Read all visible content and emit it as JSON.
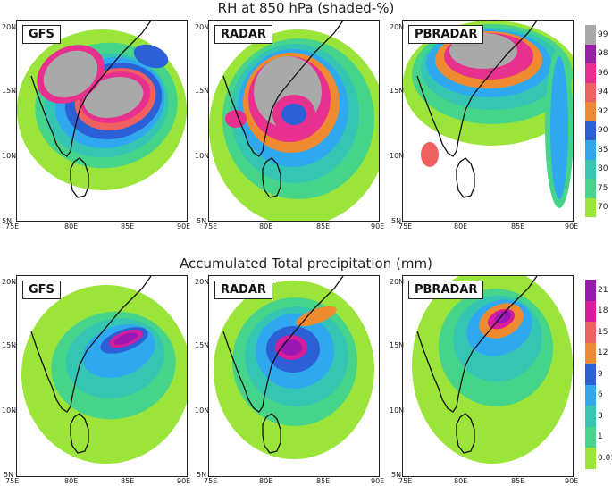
{
  "titles": {
    "top": "RH at 850 hPa (shaded-%)",
    "bottom": "Accumulated Total precipitation (mm)"
  },
  "panel_labels": [
    "GFS",
    "RADAR",
    "PBRADAR"
  ],
  "x_ticks": [
    "75E",
    "80E",
    "85E",
    "90E"
  ],
  "y_ticks": [
    "20N",
    "15N",
    "10N",
    "5N"
  ],
  "rh_colorbar": {
    "labels": [
      "99",
      "98",
      "96",
      "94",
      "92",
      "90",
      "85",
      "80",
      "75",
      "70"
    ],
    "colors": [
      "#a9a9a9",
      "#9b1fa8",
      "#e8308f",
      "#f06060",
      "#f08a30",
      "#2d5fd6",
      "#2fa8f0",
      "#34c6b3",
      "#46d48a",
      "#9be43a"
    ]
  },
  "precip_colorbar": {
    "labels": [
      "21",
      "18",
      "15",
      "12",
      "9",
      "6",
      "3",
      "1",
      "0.01"
    ],
    "colors": [
      "#9b18b5",
      "#d81d9c",
      "#f06060",
      "#f08a30",
      "#2d5fd6",
      "#2fa8f0",
      "#34c6b3",
      "#46d48a",
      "#9be43a"
    ]
  }
}
